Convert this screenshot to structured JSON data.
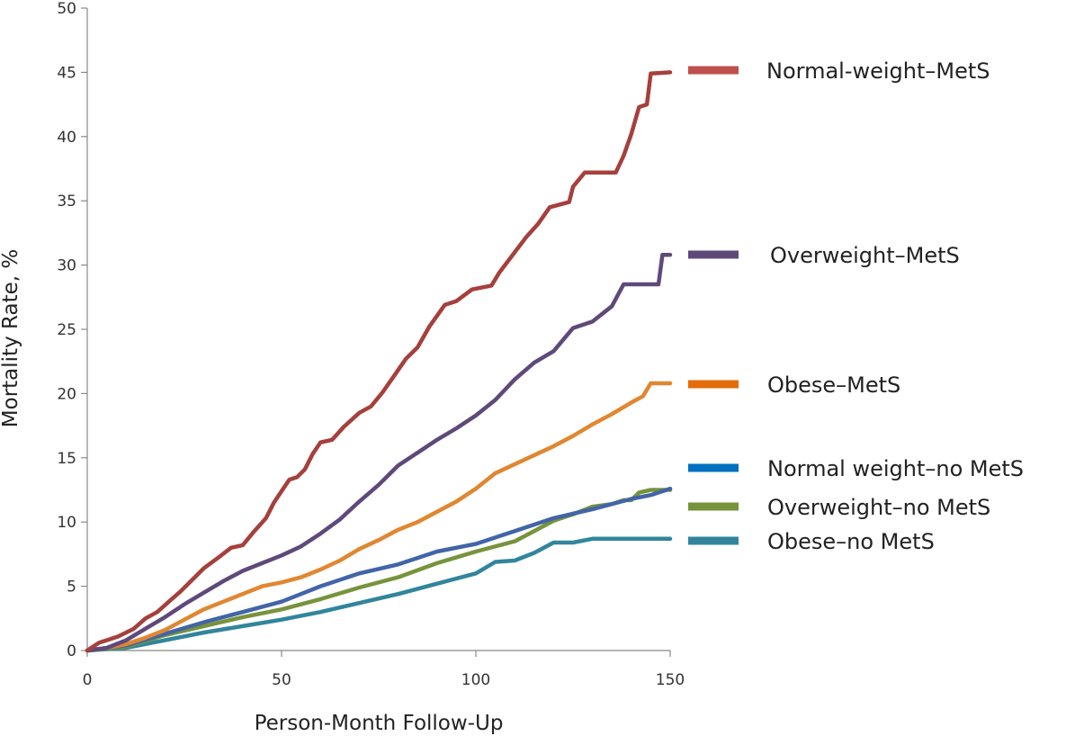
{
  "chart_data": {
    "type": "line",
    "title": "",
    "xlabel": "Person-Month Follow-Up",
    "ylabel": "Mortality Rate, %",
    "xlim": [
      0,
      150
    ],
    "ylim": [
      0,
      50
    ],
    "x_ticks": [
      0,
      50,
      100,
      150
    ],
    "y_ticks": [
      0,
      5,
      10,
      15,
      20,
      25,
      30,
      35,
      40,
      45,
      50
    ],
    "grid": false,
    "legend_placement": "right",
    "series": [
      {
        "name": "Normal-weight–MetS",
        "color": "#A5403D",
        "legend_color": "#C0504D",
        "legend_value": 45,
        "points": [
          [
            0,
            0
          ],
          [
            3,
            0.6
          ],
          [
            8,
            1.1
          ],
          [
            12,
            1.7
          ],
          [
            15,
            2.5
          ],
          [
            18,
            3.0
          ],
          [
            21,
            3.8
          ],
          [
            24,
            4.6
          ],
          [
            27,
            5.5
          ],
          [
            30,
            6.4
          ],
          [
            34,
            7.3
          ],
          [
            37,
            8.0
          ],
          [
            40,
            8.2
          ],
          [
            43,
            9.3
          ],
          [
            46,
            10.3
          ],
          [
            48,
            11.5
          ],
          [
            50,
            12.4
          ],
          [
            52,
            13.3
          ],
          [
            54,
            13.5
          ],
          [
            56,
            14.1
          ],
          [
            58,
            15.3
          ],
          [
            60,
            16.2
          ],
          [
            63,
            16.4
          ],
          [
            66,
            17.4
          ],
          [
            70,
            18.5
          ],
          [
            73,
            19.0
          ],
          [
            76,
            20.1
          ],
          [
            79,
            21.4
          ],
          [
            82,
            22.7
          ],
          [
            85,
            23.6
          ],
          [
            88,
            25.2
          ],
          [
            92,
            26.9
          ],
          [
            95,
            27.2
          ],
          [
            99,
            28.1
          ],
          [
            104,
            28.4
          ],
          [
            106,
            29.4
          ],
          [
            109,
            30.6
          ],
          [
            113,
            32.2
          ],
          [
            116,
            33.2
          ],
          [
            119,
            34.5
          ],
          [
            124,
            34.9
          ],
          [
            125,
            36.1
          ],
          [
            128,
            37.2
          ],
          [
            133,
            37.2
          ],
          [
            136,
            37.2
          ],
          [
            138,
            38.5
          ],
          [
            140,
            40.2
          ],
          [
            142,
            42.3
          ],
          [
            144,
            42.5
          ],
          [
            145,
            44.9
          ],
          [
            150,
            45.0
          ]
        ]
      },
      {
        "name": "Overweight–MetS",
        "color": "#5F497A",
        "legend_color": "#5F497A",
        "legend_value": 30.8,
        "points": [
          [
            0,
            0
          ],
          [
            5,
            0.2
          ],
          [
            10,
            0.8
          ],
          [
            15,
            1.7
          ],
          [
            20,
            2.6
          ],
          [
            25,
            3.6
          ],
          [
            30,
            4.5
          ],
          [
            35,
            5.4
          ],
          [
            40,
            6.2
          ],
          [
            45,
            6.8
          ],
          [
            50,
            7.4
          ],
          [
            55,
            8.1
          ],
          [
            60,
            9.1
          ],
          [
            65,
            10.2
          ],
          [
            70,
            11.6
          ],
          [
            75,
            12.9
          ],
          [
            80,
            14.4
          ],
          [
            85,
            15.4
          ],
          [
            90,
            16.4
          ],
          [
            95,
            17.3
          ],
          [
            100,
            18.3
          ],
          [
            105,
            19.5
          ],
          [
            110,
            21.1
          ],
          [
            115,
            22.4
          ],
          [
            120,
            23.3
          ],
          [
            125,
            25.1
          ],
          [
            130,
            25.6
          ],
          [
            135,
            26.8
          ],
          [
            138,
            28.5
          ],
          [
            140,
            28.5
          ],
          [
            143,
            28.5
          ],
          [
            147,
            28.5
          ],
          [
            148,
            30.8
          ],
          [
            150,
            30.8
          ]
        ]
      },
      {
        "name": "Obese–MetS",
        "color": "#E08731",
        "legend_color": "#E46C0A",
        "legend_value": 20.8,
        "points": [
          [
            0,
            0
          ],
          [
            5,
            0.2
          ],
          [
            10,
            0.5
          ],
          [
            15,
            1.0
          ],
          [
            20,
            1.6
          ],
          [
            25,
            2.4
          ],
          [
            30,
            3.2
          ],
          [
            35,
            3.8
          ],
          [
            40,
            4.4
          ],
          [
            45,
            5.0
          ],
          [
            50,
            5.3
          ],
          [
            55,
            5.7
          ],
          [
            60,
            6.3
          ],
          [
            65,
            7.0
          ],
          [
            70,
            7.9
          ],
          [
            75,
            8.6
          ],
          [
            80,
            9.4
          ],
          [
            85,
            10.0
          ],
          [
            90,
            10.8
          ],
          [
            95,
            11.6
          ],
          [
            100,
            12.6
          ],
          [
            105,
            13.8
          ],
          [
            110,
            14.5
          ],
          [
            115,
            15.2
          ],
          [
            120,
            15.9
          ],
          [
            125,
            16.7
          ],
          [
            130,
            17.6
          ],
          [
            135,
            18.4
          ],
          [
            140,
            19.3
          ],
          [
            143,
            19.8
          ],
          [
            145,
            20.8
          ],
          [
            150,
            20.8
          ]
        ]
      },
      {
        "name": "Normal weight–no MetS",
        "color": "#4265A7",
        "legend_color": "#0070C0",
        "legend_value": 12.6,
        "points": [
          [
            0,
            0
          ],
          [
            10,
            0.4
          ],
          [
            20,
            1.3
          ],
          [
            30,
            2.2
          ],
          [
            40,
            3.0
          ],
          [
            50,
            3.8
          ],
          [
            55,
            4.4
          ],
          [
            60,
            5.0
          ],
          [
            70,
            6.0
          ],
          [
            80,
            6.7
          ],
          [
            90,
            7.7
          ],
          [
            100,
            8.3
          ],
          [
            110,
            9.3
          ],
          [
            120,
            10.3
          ],
          [
            130,
            11.0
          ],
          [
            140,
            11.8
          ],
          [
            145,
            12.1
          ],
          [
            150,
            12.6
          ]
        ]
      },
      {
        "name": "Overweight–no MetS",
        "color": "#77933C",
        "legend_color": "#77933C",
        "legend_value": 12.5,
        "points": [
          [
            0,
            0
          ],
          [
            10,
            0.3
          ],
          [
            20,
            1.2
          ],
          [
            30,
            1.9
          ],
          [
            40,
            2.6
          ],
          [
            50,
            3.2
          ],
          [
            60,
            4.0
          ],
          [
            70,
            4.9
          ],
          [
            80,
            5.7
          ],
          [
            90,
            6.8
          ],
          [
            100,
            7.7
          ],
          [
            110,
            8.5
          ],
          [
            115,
            9.3
          ],
          [
            120,
            10.1
          ],
          [
            125,
            10.6
          ],
          [
            130,
            11.2
          ],
          [
            135,
            11.4
          ],
          [
            138,
            11.7
          ],
          [
            140,
            11.7
          ],
          [
            142,
            12.3
          ],
          [
            145,
            12.5
          ],
          [
            150,
            12.5
          ]
        ]
      },
      {
        "name": "Obese–no MetS",
        "color": "#31859C",
        "legend_color": "#31859C",
        "legend_value": 8.7,
        "points": [
          [
            0,
            0
          ],
          [
            10,
            0.2
          ],
          [
            20,
            0.8
          ],
          [
            30,
            1.4
          ],
          [
            40,
            1.9
          ],
          [
            50,
            2.4
          ],
          [
            60,
            3.0
          ],
          [
            70,
            3.7
          ],
          [
            80,
            4.4
          ],
          [
            90,
            5.2
          ],
          [
            100,
            6.0
          ],
          [
            105,
            6.9
          ],
          [
            110,
            7.0
          ],
          [
            115,
            7.6
          ],
          [
            120,
            8.4
          ],
          [
            125,
            8.4
          ],
          [
            130,
            8.7
          ],
          [
            135,
            8.7
          ],
          [
            140,
            8.7
          ],
          [
            150,
            8.7
          ]
        ]
      }
    ]
  }
}
